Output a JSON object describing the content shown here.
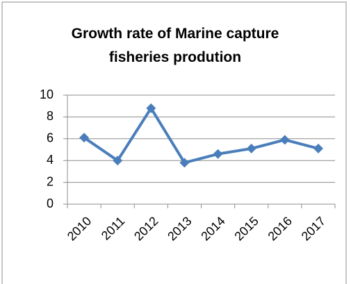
{
  "chart_data": {
    "type": "line",
    "title": "Growth rate of Marine capture fisheries prodution",
    "categories": [
      "2010",
      "2011",
      "2012",
      "2013",
      "2014",
      "2015",
      "2016",
      "2017"
    ],
    "values": [
      6.1,
      4.0,
      8.8,
      3.8,
      4.6,
      5.1,
      5.9,
      5.1
    ],
    "color": "#4a7ebb",
    "ylim": [
      0,
      10
    ],
    "yticks": [
      0,
      2,
      4,
      6,
      8,
      10
    ],
    "grid": true
  }
}
